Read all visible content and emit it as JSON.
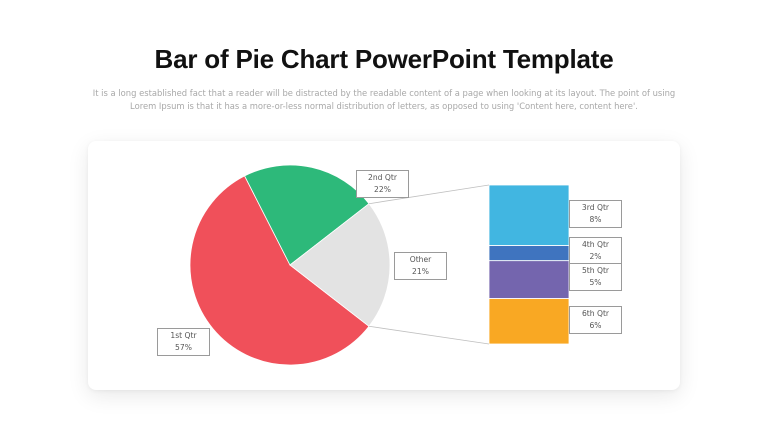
{
  "slide": {
    "title": "Bar of Pie Chart PowerPoint Template",
    "subtitle": "It is a long established fact that a reader will be distracted by the readable content of a page when looking at its layout. The point of using Lorem Ipsum is that it has a more-or-less normal distribution of letters, as opposed to using 'Content here, content here'."
  },
  "chart_data": {
    "type": "bar-of-pie",
    "pie": [
      {
        "name": "1st Qtr",
        "label": "57%",
        "value": 57,
        "color": "#f0505a"
      },
      {
        "name": "2nd Qtr",
        "label": "22%",
        "value": 22,
        "color": "#2db97a"
      },
      {
        "name": "Other",
        "label": "21%",
        "value": 21,
        "color": "#e3e3e3"
      }
    ],
    "bar": [
      {
        "name": "3rd Qtr",
        "label": "8%",
        "value": 8,
        "color": "#41b6e1"
      },
      {
        "name": "4th Qtr",
        "label": "2%",
        "value": 2,
        "color": "#3f74bf"
      },
      {
        "name": "5th Qtr",
        "label": "5%",
        "value": 5,
        "color": "#7465ae"
      },
      {
        "name": "6th Qtr",
        "label": "6%",
        "value": 6,
        "color": "#f9a823"
      }
    ]
  }
}
